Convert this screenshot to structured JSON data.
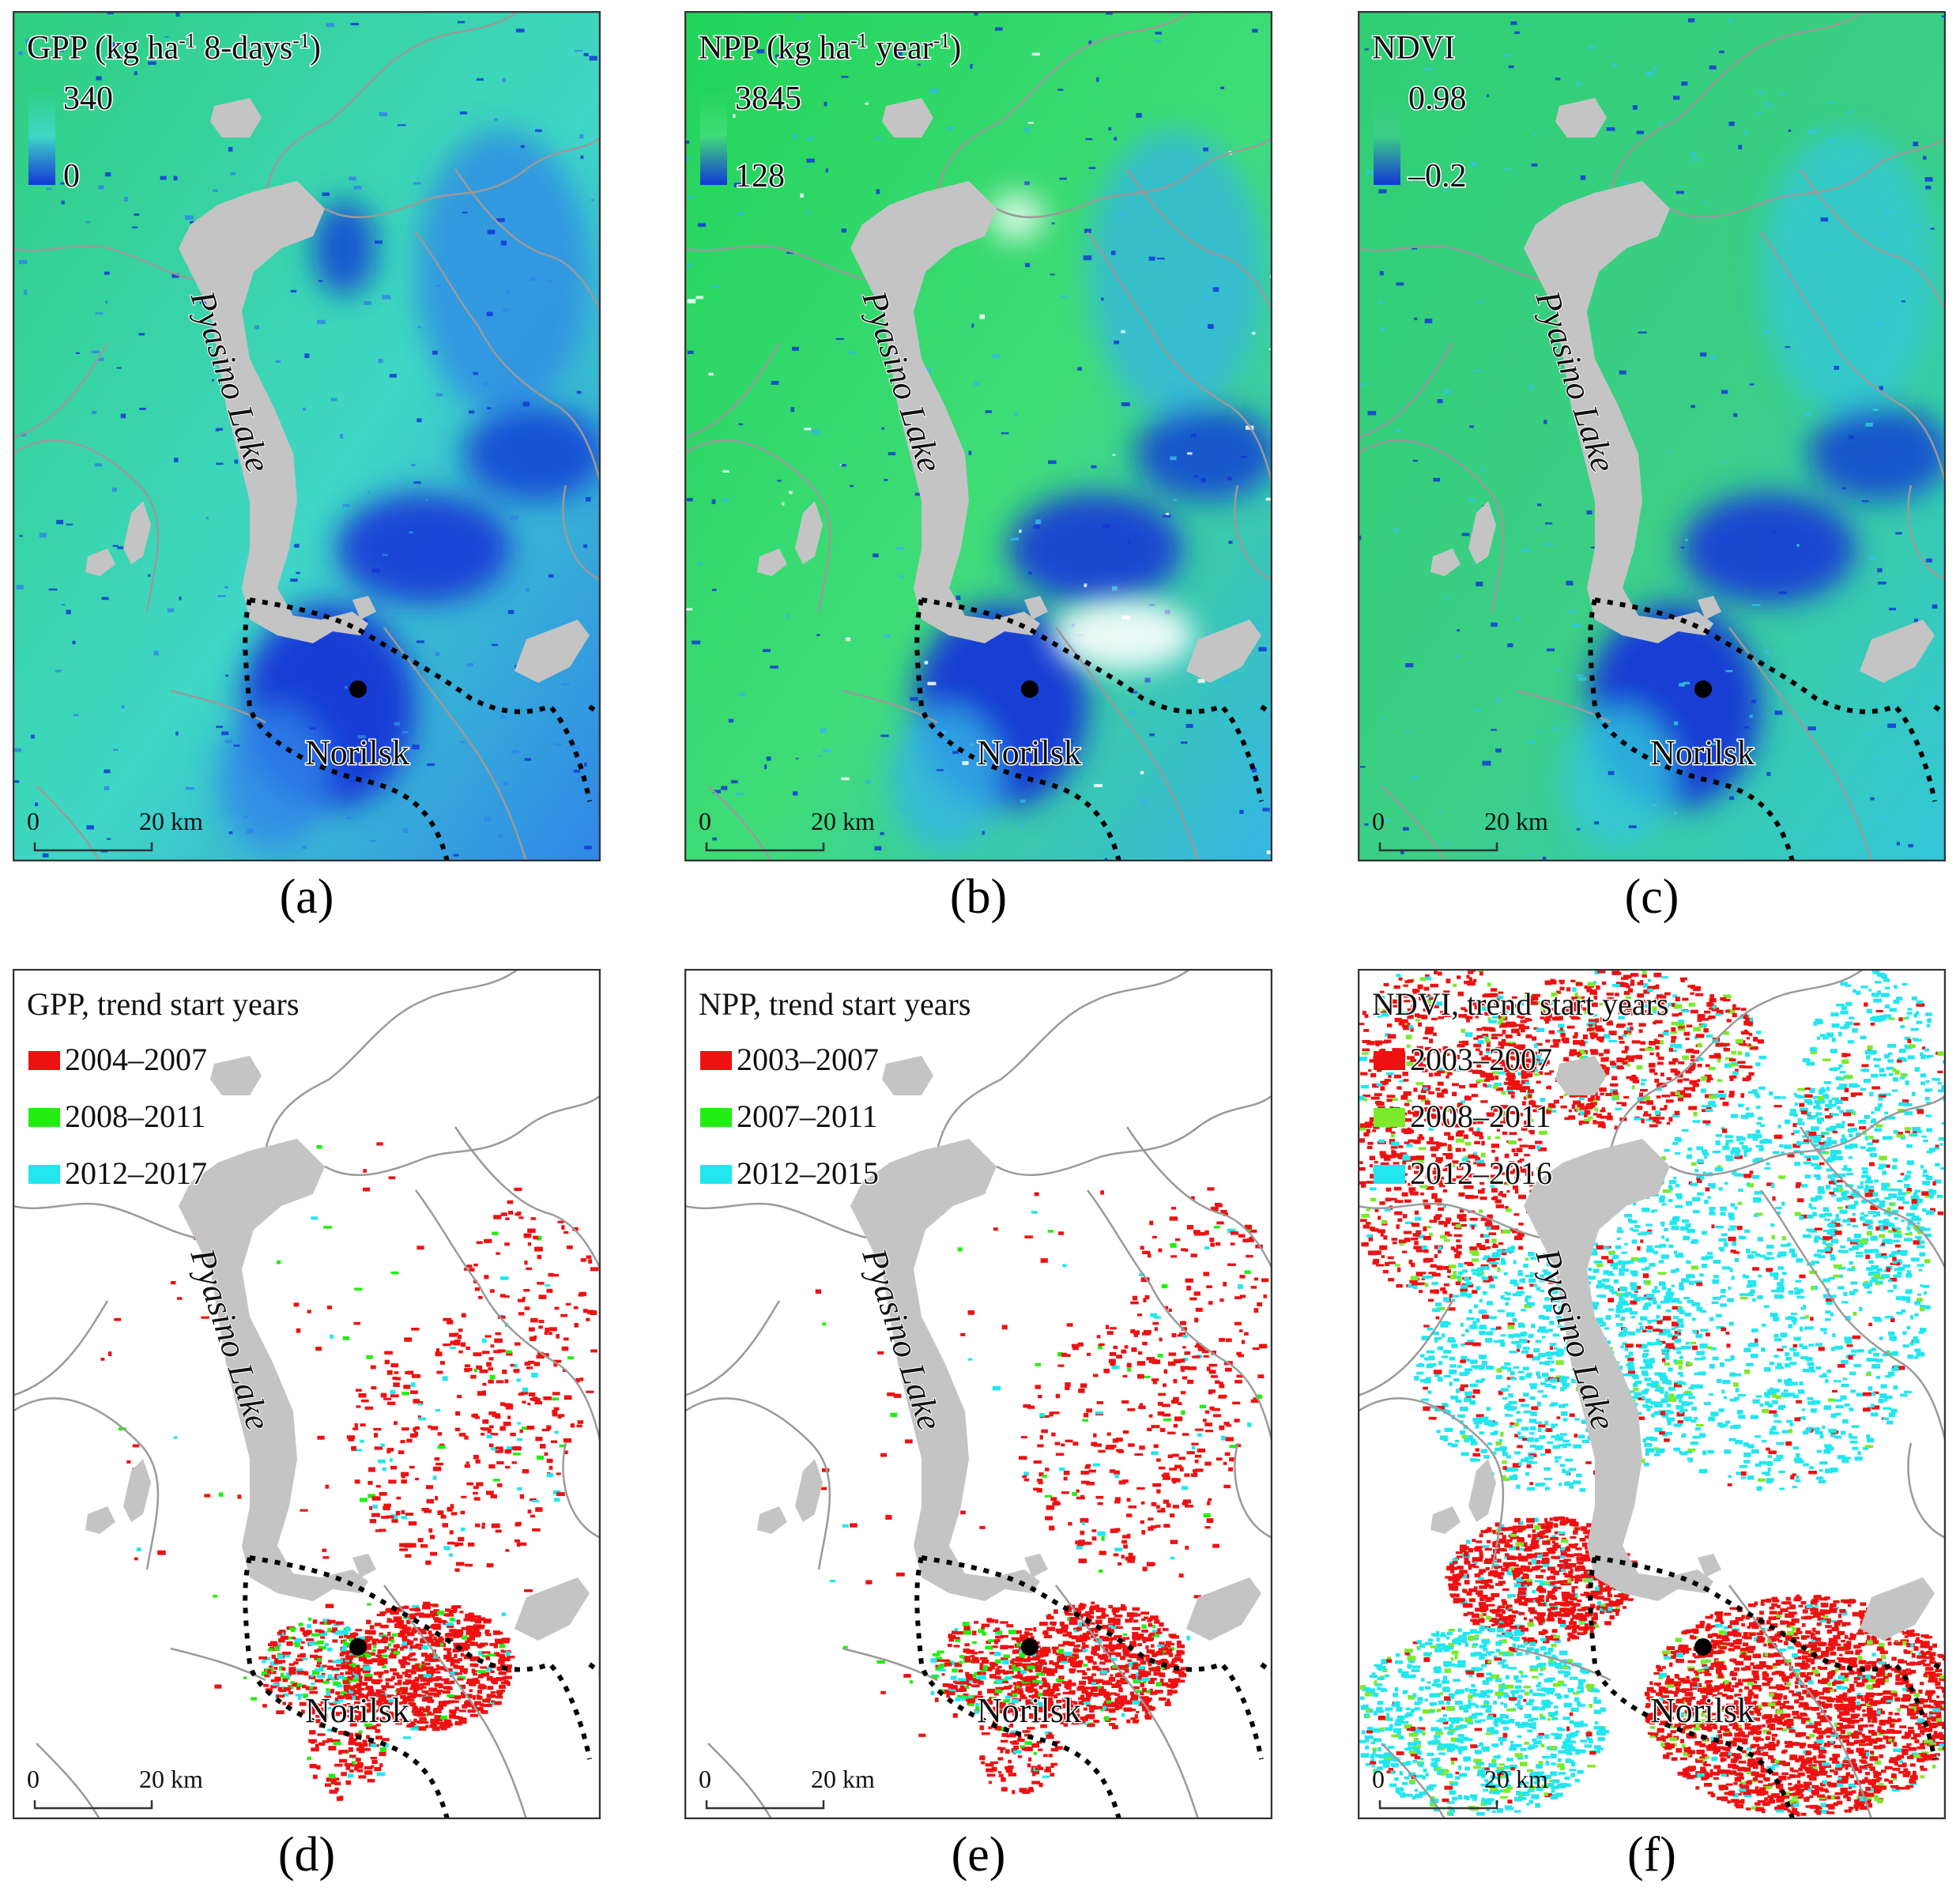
{
  "panels": [
    {
      "id": "a",
      "caption": "(a)",
      "kind": "continuous",
      "title_main": "GPP (kg ha",
      "title_sup1": "-1",
      "title_mid": " 8-days",
      "title_sup2": "-1",
      "title_end": ")",
      "legend_max": "340",
      "legend_min": "0",
      "colors": {
        "bg": "#3fd7c6",
        "high": "#2fcf7e",
        "low": "#1437d6",
        "lowmid": "#2f86e8"
      },
      "lake_label": "Pyasino Lake",
      "city_label": "Norilsk",
      "scale_start": "0",
      "scale_end": "20 km"
    },
    {
      "id": "b",
      "caption": "(b)",
      "kind": "continuous",
      "title_main": "NPP (kg ha",
      "title_sup1": "-1",
      "title_mid": " year",
      "title_sup2": "-1",
      "title_end": ")",
      "legend_max": "3845",
      "legend_min": "128",
      "colors": {
        "bg": "#3fdc78",
        "high": "#22d45a",
        "low": "#1437d6",
        "lowmid": "#35b6e6"
      },
      "lake_label": "Pyasino Lake",
      "city_label": "Norilsk",
      "scale_start": "0",
      "scale_end": "20 km"
    },
    {
      "id": "c",
      "caption": "(c)",
      "kind": "continuous",
      "title_main": "NDVI",
      "title_sup1": "",
      "title_mid": "",
      "title_sup2": "",
      "title_end": "",
      "legend_max": "0.98",
      "legend_min": "–0.2",
      "colors": {
        "bg": "#3ccf86",
        "high": "#2fcf74",
        "low": "#1437d6",
        "lowmid": "#33c7dc"
      },
      "lake_label": "Pyasino Lake",
      "city_label": "Norilsk",
      "scale_start": "0",
      "scale_end": "20 km"
    },
    {
      "id": "d",
      "caption": "(d)",
      "kind": "trend",
      "title_main": "GPP, trend start years",
      "legend": [
        {
          "label": "2004–2007",
          "color": "#ee1111"
        },
        {
          "label": "2008–2011",
          "color": "#22ee11"
        },
        {
          "label": "2012–2017",
          "color": "#22e6f0"
        }
      ],
      "lake_label": "Pyasino Lake",
      "city_label": "Norilsk",
      "scale_start": "0",
      "scale_end": "20 km"
    },
    {
      "id": "e",
      "caption": "(e)",
      "kind": "trend",
      "title_main": "NPP, trend start years",
      "legend": [
        {
          "label": "2003–2007",
          "color": "#ee1111"
        },
        {
          "label": "2007–2011",
          "color": "#22ee11"
        },
        {
          "label": "2012–2015",
          "color": "#22e6f0"
        }
      ],
      "lake_label": "Pyasino Lake",
      "city_label": "Norilsk",
      "scale_start": "0",
      "scale_end": "20 km"
    },
    {
      "id": "f",
      "caption": "(f)",
      "kind": "trend",
      "title_main": "NDVI, trend start years",
      "legend": [
        {
          "label": "2003–2007",
          "color": "#ee1111"
        },
        {
          "label": "2008–2011",
          "color": "#7bea2a"
        },
        {
          "label": "2012–2016",
          "color": "#22e6f0"
        }
      ],
      "lake_label": "Pyasino Lake",
      "city_label": "Norilsk",
      "scale_start": "0",
      "scale_end": "20 km"
    }
  ]
}
